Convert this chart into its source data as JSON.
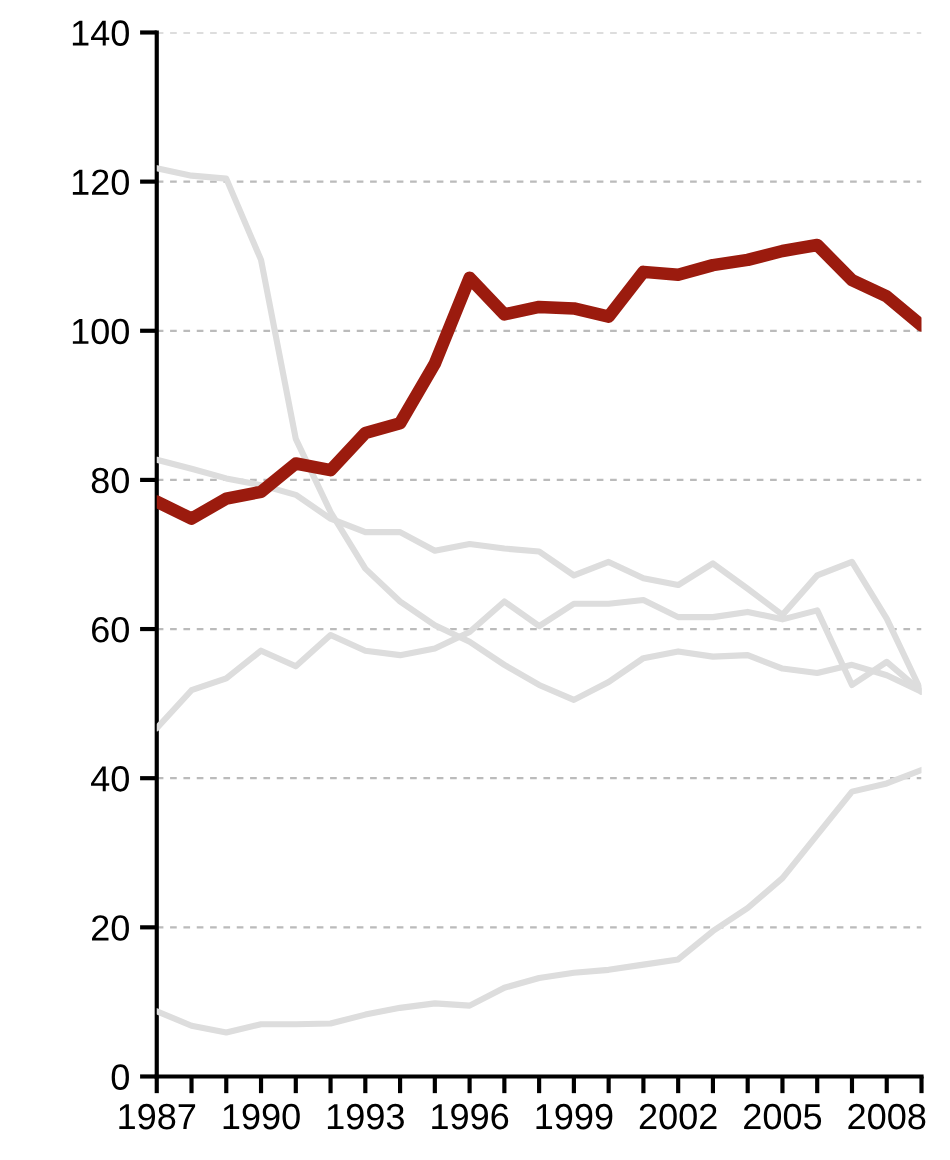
{
  "chart_data": {
    "type": "line",
    "x": [
      1987,
      1988,
      1989,
      1990,
      1991,
      1992,
      1993,
      1994,
      1995,
      1996,
      1997,
      1998,
      1999,
      2000,
      2001,
      2002,
      2003,
      2004,
      2005,
      2006,
      2007,
      2008,
      2009
    ],
    "series": [
      {
        "color": "#dddddd",
        "values": [
          121.8,
          120.8,
          120.4,
          109.5,
          85.5,
          75.7,
          68.1,
          63.7,
          60.5,
          58.3,
          55.2,
          52.5,
          50.5,
          52.9,
          56.1,
          57,
          56.3,
          56.5,
          54.7,
          54.1,
          55.2,
          53.8,
          51.6
        ]
      },
      {
        "color": "#dddddd",
        "values": [
          82.7,
          81.5,
          80.2,
          79.3,
          78,
          74.8,
          73,
          73,
          70.5,
          71.4,
          70.8,
          70.4,
          67.2,
          69,
          66.8,
          65.9,
          68.8,
          65.4,
          61.9,
          67.2,
          69,
          61.4,
          51.6
        ]
      },
      {
        "color": "#dddddd",
        "values": [
          46.7,
          51.8,
          53.4,
          57.1,
          55,
          59.2,
          57.1,
          56.5,
          57.4,
          59.6,
          63.7,
          60.4,
          63.4,
          63.4,
          63.9,
          61.6,
          61.6,
          62.3,
          61.3,
          62.5,
          52.5,
          55.6,
          51.6
        ]
      },
      {
        "color": "#dddddd",
        "values": [
          8.75,
          6.8,
          5.9,
          7,
          7,
          7.1,
          8.3,
          9.2,
          9.8,
          9.5,
          11.9,
          13.2,
          13.9,
          14.3,
          15,
          15.7,
          19.5,
          22.6,
          26.6,
          32.4,
          38.2,
          39.3,
          41.1
        ]
      },
      {
        "color": "#9b1b0e",
        "values": [
          77.1,
          74.8,
          77.5,
          78.4,
          82.2,
          81.3,
          86.3,
          87.6,
          95.6,
          107.1,
          102.2,
          103.2,
          103,
          101.9,
          107.9,
          107.5,
          108.8,
          109.5,
          110.7,
          111.5,
          106.8,
          104.6,
          100.7
        ]
      }
    ],
    "xlim": [
      1987,
      2009
    ],
    "xticks": [
      1987,
      {
        "value": 1988,
        "label": null
      },
      {
        "value": 1989,
        "label": null
      },
      1990,
      {
        "value": 1991,
        "label": null
      },
      {
        "value": 1992,
        "label": null
      },
      1993,
      {
        "value": 1994,
        "label": null
      },
      {
        "value": 1995,
        "label": null
      },
      1996,
      {
        "value": 1997,
        "label": null
      },
      {
        "value": 1998,
        "label": null
      },
      1999,
      {
        "value": 2000,
        "label": null
      },
      {
        "value": 2001,
        "label": null
      },
      2002,
      {
        "value": 2003,
        "label": null
      },
      {
        "value": 2004,
        "label": null
      },
      2005,
      {
        "value": 2006,
        "label": null
      },
      {
        "value": 2007,
        "label": null
      },
      2008,
      {
        "value": 2009,
        "label": null
      }
    ],
    "ylim": [
      0,
      140
    ],
    "yticks": [
      0,
      20,
      40,
      60,
      80,
      100,
      120,
      140
    ],
    "grid": "y",
    "line_style": "solid",
    "marker": "none"
  }
}
